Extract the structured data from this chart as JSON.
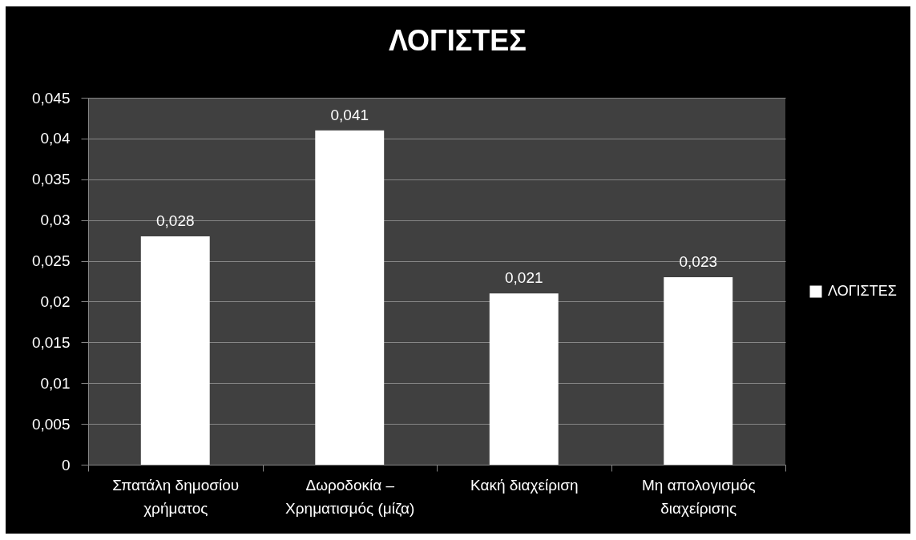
{
  "chart_data": {
    "type": "bar",
    "title": "ΛΟΓΙΣΤΕΣ",
    "categories": [
      "Σπατάλη δημοσίου χρήματος",
      "Δωροδοκία – Χρηματισμός (μίζα)",
      "Κακή διαχείριση",
      "Μη απολογισμός διαχείρισης"
    ],
    "series": [
      {
        "name": "ΛΟΓΙΣΤΕΣ",
        "color": "#ffffff",
        "values": [
          0.028,
          0.041,
          0.021,
          0.023
        ],
        "value_labels": [
          "0,028",
          "0,041",
          "0,021",
          "0,023"
        ]
      }
    ],
    "ylim": [
      0,
      0.045
    ],
    "yticks": [
      0,
      {
        "value": 0.005,
        "label": "0,005"
      },
      {
        "value": 0.01,
        "label": "0,01"
      },
      {
        "value": 0.015,
        "label": "0,015"
      },
      {
        "value": 0.02,
        "label": "0,02"
      },
      {
        "value": 0.025,
        "label": "0,025"
      },
      {
        "value": 0.03,
        "label": "0,03"
      },
      {
        "value": 0.035,
        "label": "0,035"
      },
      {
        "value": 0.04,
        "label": "0,04"
      },
      {
        "value": 0.045,
        "label": "0,045"
      }
    ],
    "grid": "y",
    "legend": "right"
  }
}
